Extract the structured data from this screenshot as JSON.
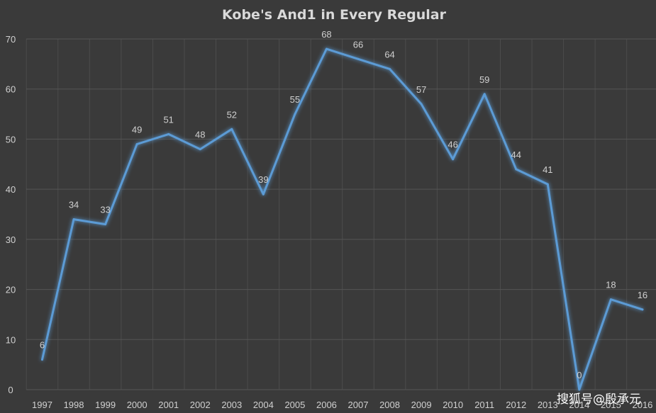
{
  "chart_data": {
    "type": "line",
    "title": "Kobe's And1 in Every Regular",
    "xlabel": "",
    "ylabel": "",
    "categories": [
      "1997",
      "1998",
      "1999",
      "2000",
      "2001",
      "2002",
      "2003",
      "2004",
      "2005",
      "2006",
      "2007",
      "2008",
      "2009",
      "2010",
      "2011",
      "2012",
      "2013",
      "2014",
      "2015",
      "2016"
    ],
    "series": [
      {
        "values": [
          6,
          34,
          33,
          49,
          51,
          48,
          52,
          39,
          55,
          68,
          66,
          64,
          57,
          46,
          59,
          44,
          41,
          0,
          18,
          16
        ]
      }
    ],
    "ylim": [
      0,
      70
    ],
    "yticks": [
      0,
      10,
      20,
      30,
      40,
      50,
      60,
      70
    ],
    "grid": true,
    "line_color": "#5b9bd5",
    "background_color": "#3a3a3a"
  },
  "watermark": {
    "text": "搜狐号@殷承元"
  }
}
